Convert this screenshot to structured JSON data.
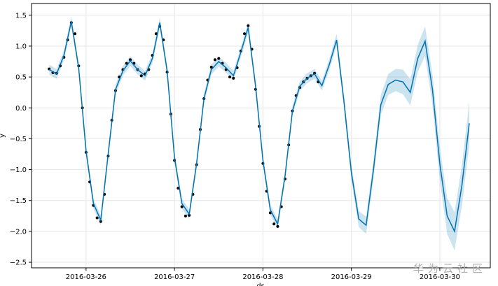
{
  "chart_data": {
    "type": "line",
    "y_label": "y",
    "x_label": "ds",
    "watermark": "华为云社区",
    "grid": true,
    "xlim": [
      "2016-03-25 09:12",
      "2016-03-30 13:42"
    ],
    "ylim": [
      -2.59,
      1.69
    ],
    "xticks": [
      "2016-03-26",
      "2016-03-27",
      "2016-03-28",
      "2016-03-29",
      "2016-03-30"
    ],
    "yticks": [
      1.5,
      {
        "value": 1,
        "label": "1.0"
      },
      0.5,
      {
        "value": 0,
        "label": "0.0"
      },
      {
        "value": -0.5,
        "label": "−0.5"
      },
      {
        "value": -1,
        "label": "−1.0"
      },
      {
        "value": -1.5,
        "label": "−1.5"
      },
      {
        "value": -2,
        "label": "−2.0"
      },
      {
        "value": -2.5,
        "label": "−2.5"
      }
    ],
    "forecast": {
      "color": "#0072b2",
      "band_color": "#0072b2",
      "x": [
        "2016-03-25 14:00",
        "2016-03-25 16:00",
        "2016-03-25 18:00",
        "2016-03-25 20:00",
        "2016-03-25 22:00",
        "2016-03-26 00:00",
        "2016-03-26 02:00",
        "2016-03-26 04:00",
        "2016-03-26 06:00",
        "2016-03-26 08:00",
        "2016-03-26 10:00",
        "2016-03-26 12:00",
        "2016-03-26 14:00",
        "2016-03-26 16:00",
        "2016-03-26 18:00",
        "2016-03-26 20:00",
        "2016-03-26 22:00",
        "2016-03-27 00:00",
        "2016-03-27 02:00",
        "2016-03-27 04:00",
        "2016-03-27 06:00",
        "2016-03-27 08:00",
        "2016-03-27 10:00",
        "2016-03-27 12:00",
        "2016-03-27 14:00",
        "2016-03-27 16:00",
        "2016-03-27 18:00",
        "2016-03-27 20:00",
        "2016-03-27 22:00",
        "2016-03-28 00:00",
        "2016-03-28 02:00",
        "2016-03-28 04:00",
        "2016-03-28 06:00",
        "2016-03-28 08:00",
        "2016-03-28 10:00",
        "2016-03-28 12:00",
        "2016-03-28 14:00",
        "2016-03-28 16:00",
        "2016-03-28 18:00",
        "2016-03-28 20:00",
        "2016-03-28 22:00",
        "2016-03-29 00:00",
        "2016-03-29 02:00",
        "2016-03-29 04:00",
        "2016-03-29 06:00",
        "2016-03-29 08:00",
        "2016-03-29 10:00",
        "2016-03-29 12:00",
        "2016-03-29 14:00",
        "2016-03-29 16:00",
        "2016-03-29 18:00",
        "2016-03-29 20:00",
        "2016-03-29 22:00",
        "2016-03-30 00:00",
        "2016-03-30 02:00",
        "2016-03-30 04:00",
        "2016-03-30 06:00",
        "2016-03-30 08:00"
      ],
      "values": [
        0.62,
        0.55,
        0.85,
        1.4,
        0.65,
        -0.7,
        -1.55,
        -1.82,
        -0.75,
        0.3,
        0.6,
        0.76,
        0.62,
        0.52,
        0.8,
        1.38,
        0.6,
        -0.8,
        -1.55,
        -1.72,
        -0.9,
        0.15,
        0.62,
        0.75,
        0.65,
        0.52,
        0.9,
        1.3,
        0.35,
        -0.85,
        -1.65,
        -1.88,
        -1.1,
        -0.05,
        0.35,
        0.48,
        0.55,
        0.36,
        0.7,
        1.1,
        0.1,
        -1.05,
        -1.8,
        -1.9,
        -1.0,
        0.05,
        0.38,
        0.45,
        0.42,
        0.25,
        0.8,
        1.08,
        0.3,
        -0.9,
        -1.75,
        -2.0,
        -1.25,
        -0.25
      ],
      "lower": [
        0.54,
        0.47,
        0.77,
        1.32,
        0.57,
        -0.78,
        -1.63,
        -1.9,
        -0.83,
        0.22,
        0.52,
        0.68,
        0.54,
        0.44,
        0.72,
        1.3,
        0.52,
        -0.88,
        -1.63,
        -1.8,
        -0.98,
        0.07,
        0.54,
        0.67,
        0.57,
        0.44,
        0.82,
        1.22,
        0.27,
        -0.93,
        -1.73,
        -1.96,
        -1.18,
        -0.13,
        0.27,
        0.4,
        0.47,
        0.28,
        0.61,
        1.0,
        -0.01,
        -1.17,
        -1.93,
        -2.04,
        -1.15,
        -0.11,
        0.21,
        0.27,
        0.22,
        0.04,
        0.58,
        0.84,
        0.05,
        -1.17,
        -2.04,
        -2.31,
        -1.58,
        -0.6
      ],
      "upper": [
        0.7,
        0.63,
        0.93,
        1.48,
        0.73,
        -0.62,
        -1.47,
        -1.74,
        -0.67,
        0.38,
        0.68,
        0.84,
        0.7,
        0.6,
        0.88,
        1.46,
        0.68,
        -0.72,
        -1.47,
        -1.64,
        -0.82,
        0.23,
        0.7,
        0.83,
        0.73,
        0.6,
        0.98,
        1.38,
        0.43,
        -0.77,
        -1.57,
        -1.8,
        -1.02,
        0.03,
        0.43,
        0.56,
        0.63,
        0.44,
        0.79,
        1.2,
        0.21,
        -0.93,
        -1.67,
        -1.76,
        -0.85,
        0.21,
        0.55,
        0.63,
        0.62,
        0.46,
        1.02,
        1.32,
        0.55,
        -0.63,
        -1.46,
        -1.69,
        -0.92,
        0.1
      ]
    },
    "observed": {
      "color": "#000000",
      "x": [
        "2016-03-25 14:00",
        "2016-03-25 15:00",
        "2016-03-25 16:00",
        "2016-03-25 17:00",
        "2016-03-25 18:00",
        "2016-03-25 19:00",
        "2016-03-25 20:00",
        "2016-03-25 21:00",
        "2016-03-25 22:00",
        "2016-03-25 23:00",
        "2016-03-26 00:00",
        "2016-03-26 01:00",
        "2016-03-26 02:00",
        "2016-03-26 03:00",
        "2016-03-26 04:00",
        "2016-03-26 05:00",
        "2016-03-26 06:00",
        "2016-03-26 07:00",
        "2016-03-26 08:00",
        "2016-03-26 09:00",
        "2016-03-26 10:00",
        "2016-03-26 11:00",
        "2016-03-26 12:00",
        "2016-03-26 13:00",
        "2016-03-26 14:00",
        "2016-03-26 15:00",
        "2016-03-26 16:00",
        "2016-03-26 17:00",
        "2016-03-26 18:00",
        "2016-03-26 19:00",
        "2016-03-26 20:00",
        "2016-03-26 21:00",
        "2016-03-26 22:00",
        "2016-03-26 23:00",
        "2016-03-27 00:00",
        "2016-03-27 01:00",
        "2016-03-27 02:00",
        "2016-03-27 03:00",
        "2016-03-27 04:00",
        "2016-03-27 05:00",
        "2016-03-27 06:00",
        "2016-03-27 07:00",
        "2016-03-27 08:00",
        "2016-03-27 09:00",
        "2016-03-27 10:00",
        "2016-03-27 11:00",
        "2016-03-27 12:00",
        "2016-03-27 13:00",
        "2016-03-27 14:00",
        "2016-03-27 15:00",
        "2016-03-27 16:00",
        "2016-03-27 17:00",
        "2016-03-27 18:00",
        "2016-03-27 19:00",
        "2016-03-27 20:00",
        "2016-03-27 21:00",
        "2016-03-27 22:00",
        "2016-03-27 23:00",
        "2016-03-28 00:00",
        "2016-03-28 01:00",
        "2016-03-28 02:00",
        "2016-03-28 03:00",
        "2016-03-28 04:00",
        "2016-03-28 05:00",
        "2016-03-28 06:00",
        "2016-03-28 07:00",
        "2016-03-28 08:00",
        "2016-03-28 09:00",
        "2016-03-28 10:00",
        "2016-03-28 11:00",
        "2016-03-28 12:00",
        "2016-03-28 13:00",
        "2016-03-28 14:00",
        "2016-03-28 15:00"
      ],
      "values": [
        0.63,
        0.57,
        0.56,
        0.68,
        0.82,
        1.1,
        1.38,
        1.2,
        0.68,
        0.0,
        -0.72,
        -1.2,
        -1.58,
        -1.78,
        -1.84,
        -1.4,
        -0.78,
        -0.2,
        0.28,
        0.5,
        0.62,
        0.72,
        0.78,
        0.72,
        0.62,
        0.52,
        0.55,
        0.62,
        0.85,
        1.2,
        1.32,
        1.1,
        0.58,
        -0.1,
        -0.85,
        -1.3,
        -1.6,
        -1.75,
        -1.74,
        -1.4,
        -0.92,
        -0.35,
        0.15,
        0.45,
        0.66,
        0.78,
        0.8,
        0.72,
        0.62,
        0.5,
        0.48,
        0.65,
        0.92,
        1.2,
        1.33,
        0.95,
        0.3,
        -0.3,
        -0.9,
        -1.35,
        -1.7,
        -1.88,
        -1.92,
        -1.6,
        -1.15,
        -0.6,
        -0.05,
        0.2,
        0.33,
        0.42,
        0.48,
        0.52,
        0.56,
        0.42
      ]
    }
  }
}
